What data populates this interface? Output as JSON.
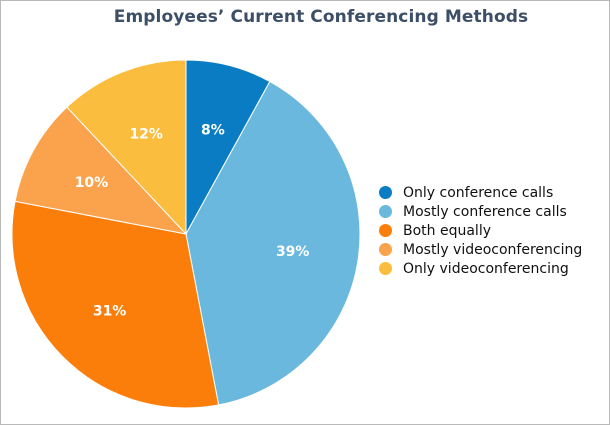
{
  "chart_data": {
    "type": "pie",
    "title": "Employees’ Current Conferencing Methods",
    "legend_position": "right",
    "slices": [
      {
        "name": "Only conference calls",
        "value": 8,
        "label": "8%",
        "color": "#0a7cc4"
      },
      {
        "name": "Mostly conference calls",
        "value": 39,
        "label": "39%",
        "color": "#6bb8df"
      },
      {
        "name": "Both equally",
        "value": 31,
        "label": "31%",
        "color": "#fb7e0a"
      },
      {
        "name": "Mostly videoconferencing",
        "value": 10,
        "label": "10%",
        "color": "#fba24d"
      },
      {
        "name": "Only videoconferencing",
        "value": 12,
        "label": "12%",
        "color": "#fbbd3e"
      }
    ]
  }
}
